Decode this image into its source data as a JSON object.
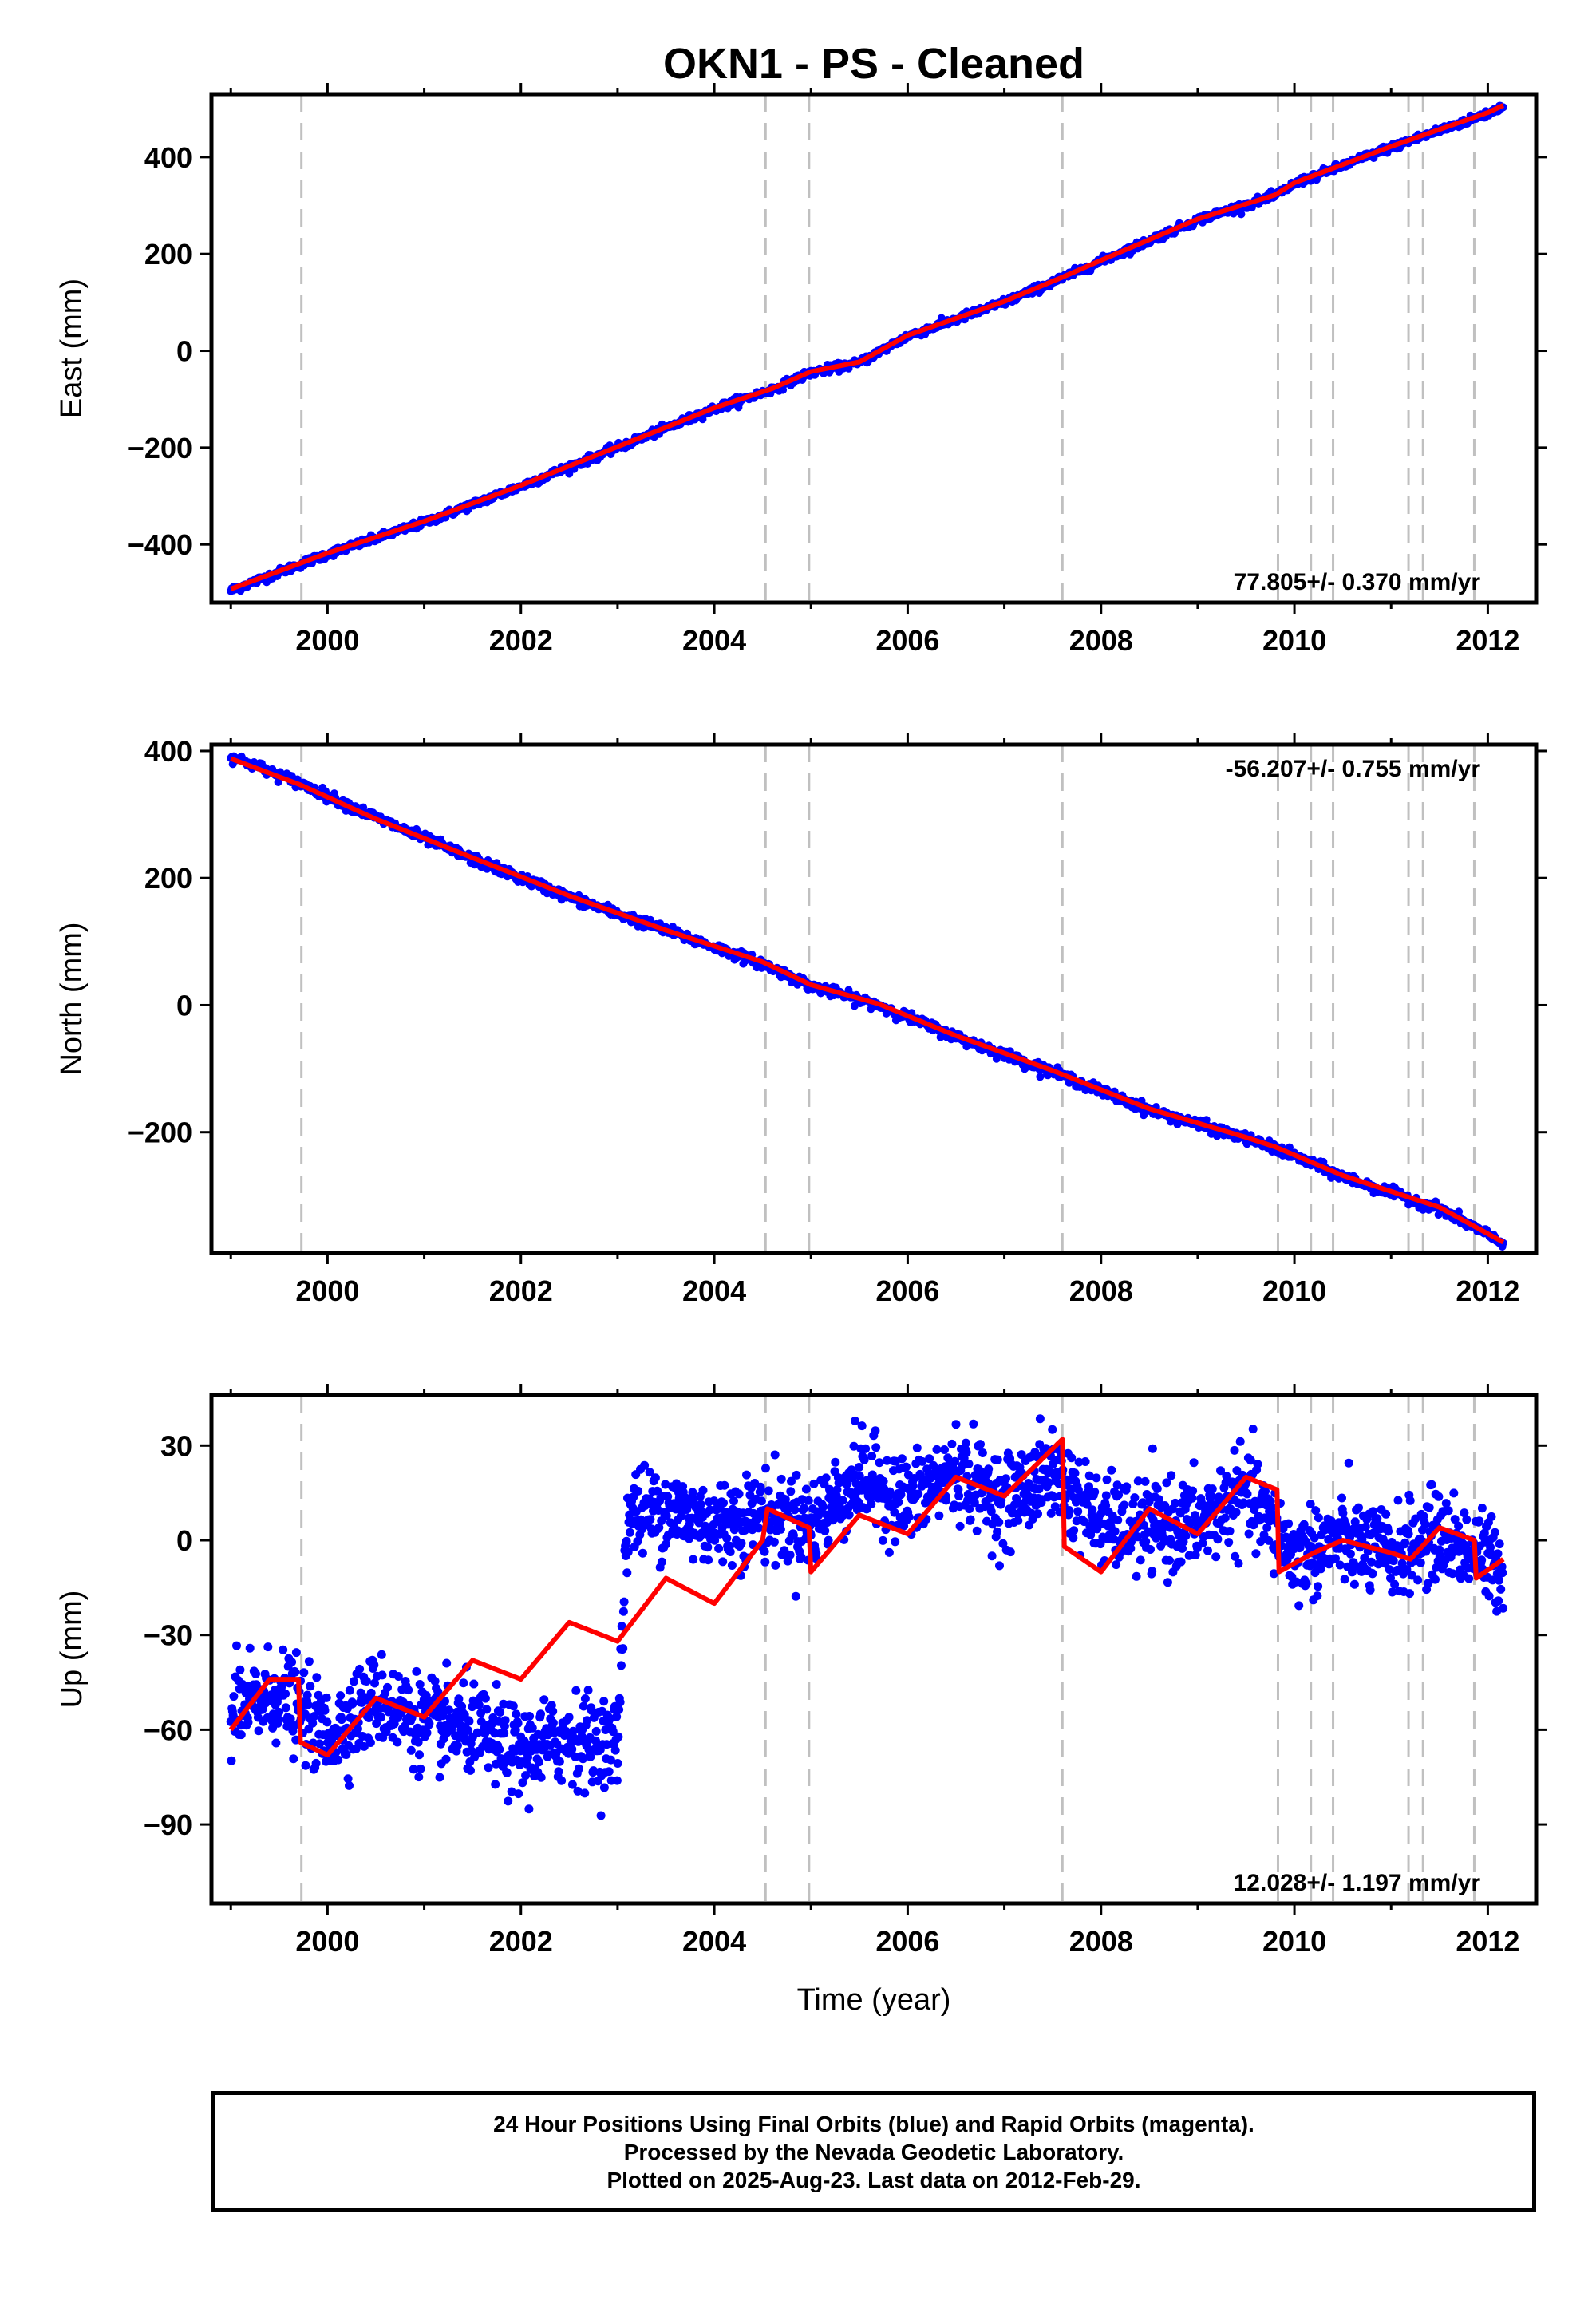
{
  "title": "OKN1  - PS - Cleaned",
  "xlabel": "Time (year)",
  "footer": {
    "line1": "24 Hour Positions Using Final Orbits (blue) and Rapid Orbits (magenta).",
    "line2": "Processed by the Nevada Geodetic Laboratory.",
    "line3": "Plotted on 2025-Aug-23. Last data on 2012-Feb-29."
  },
  "colors": {
    "data": "#0000ff",
    "model": "#ff0000",
    "breaks": "#c0c0c0",
    "axes": "#000000"
  },
  "chart_data": [
    {
      "type": "scatter",
      "panel": "east",
      "ylabel": "East (mm)",
      "rate_label": "77.805+/- 0.370 mm/yr",
      "xlim": [
        1998.8,
        2012.5
      ],
      "ylim": [
        -520,
        530
      ],
      "x_ticks": [
        2000,
        2002,
        2004,
        2006,
        2008,
        2010,
        2012
      ],
      "y_ticks": [
        -400,
        -200,
        0,
        200,
        400
      ],
      "series": [
        {
          "name": "data",
          "x": [
            1999.0,
            2000.0,
            2001.0,
            2002.0,
            2003.0,
            2004.0,
            2004.6,
            2005.0,
            2005.5,
            2006.0,
            2007.0,
            2007.6,
            2008.0,
            2009.0,
            2009.8,
            2010.0,
            2011.0,
            2012.0,
            2012.16
          ],
          "y": [
            -495,
            -420,
            -355,
            -280,
            -200,
            -120,
            -80,
            -45,
            -25,
            30,
            100,
            150,
            185,
            270,
            320,
            345,
            420,
            490,
            505
          ]
        },
        {
          "name": "model",
          "x": [
            1999.0,
            2000.0,
            2001.0,
            2002.0,
            2003.0,
            2004.0,
            2004.6,
            2005.0,
            2005.5,
            2006.0,
            2007.0,
            2007.6,
            2008.0,
            2009.0,
            2009.8,
            2010.0,
            2011.0,
            2012.0,
            2012.16
          ],
          "y": [
            -492,
            -418,
            -352,
            -278,
            -198,
            -118,
            -78,
            -43,
            -23,
            32,
            102,
            152,
            187,
            272,
            322,
            347,
            422,
            492,
            507
          ]
        }
      ]
    },
    {
      "type": "scatter",
      "panel": "north",
      "ylabel": "North (mm)",
      "rate_label": "-56.207+/- 0.755 mm/yr",
      "xlim": [
        1998.8,
        2012.5
      ],
      "ylim": [
        -390,
        410
      ],
      "x_ticks": [
        2000,
        2002,
        2004,
        2006,
        2008,
        2010,
        2012
      ],
      "y_ticks": [
        -200,
        0,
        200,
        400
      ],
      "series": [
        {
          "name": "data",
          "x": [
            1999.0,
            1999.7,
            2000.5,
            2001.5,
            2002.5,
            2003.5,
            2004.5,
            2005.0,
            2005.7,
            2006.5,
            2007.5,
            2008.5,
            2009.5,
            2009.8,
            2010.5,
            2011.5,
            2012.16
          ],
          "y": [
            392,
            350,
            295,
            230,
            170,
            118,
            65,
            30,
            0,
            -50,
            -105,
            -165,
            -210,
            -225,
            -270,
            -320,
            -375
          ]
        },
        {
          "name": "model",
          "x": [
            1999.0,
            1999.7,
            2000.5,
            2001.5,
            2002.5,
            2003.5,
            2004.5,
            2005.0,
            2005.7,
            2006.5,
            2007.5,
            2008.5,
            2009.5,
            2009.8,
            2010.5,
            2011.5,
            2012.16
          ],
          "y": [
            388,
            348,
            293,
            232,
            172,
            118,
            68,
            32,
            2,
            -48,
            -103,
            -163,
            -208,
            -223,
            -268,
            -318,
            -373
          ]
        }
      ]
    },
    {
      "type": "scatter",
      "panel": "up",
      "ylabel": "Up (mm)",
      "rate_label": "12.028+/- 1.197 mm/yr",
      "xlim": [
        1998.8,
        2012.5
      ],
      "ylim": [
        -115,
        46
      ],
      "x_ticks": [
        2000,
        2002,
        2004,
        2006,
        2008,
        2010,
        2012
      ],
      "y_ticks": [
        -90,
        -60,
        -30,
        0,
        30
      ],
      "series": [
        {
          "name": "data",
          "x": [
            1999.0,
            1999.5,
            2000.0,
            2000.5,
            2001.0,
            2001.5,
            2002.0,
            2002.5,
            2003.0,
            2003.1,
            2003.5,
            2004.0,
            2004.5,
            2005.0,
            2005.5,
            2006.0,
            2006.5,
            2007.0,
            2007.5,
            2008.0,
            2008.5,
            2009.0,
            2009.5,
            2010.0,
            2010.5,
            2011.0,
            2011.5,
            2012.0,
            2012.16
          ],
          "y": [
            -55,
            -48,
            -62,
            -50,
            -58,
            -60,
            -68,
            -62,
            -65,
            8,
            10,
            5,
            8,
            5,
            20,
            12,
            22,
            12,
            22,
            5,
            4,
            5,
            15,
            -5,
            0,
            -5,
            2,
            -6,
            -8
          ]
        },
        {
          "name": "model",
          "x": [
            1999.0,
            1999.4,
            1999.7,
            1999.72,
            2000.0,
            2000.5,
            2001.0,
            2001.5,
            2002.0,
            2002.5,
            2003.0,
            2003.5,
            2004.0,
            2004.5,
            2004.55,
            2004.98,
            2005.0,
            2005.5,
            2006.0,
            2006.5,
            2007.0,
            2007.6,
            2007.62,
            2008.0,
            2008.5,
            2009.0,
            2009.5,
            2009.82,
            2009.84,
            2010.2,
            2010.5,
            2011.0,
            2011.2,
            2011.5,
            2011.86,
            2011.88,
            2012.16
          ],
          "y": [
            -60,
            -44,
            -44,
            -64,
            -68,
            -50,
            -56,
            -38,
            -44,
            -26,
            -32,
            -12,
            -20,
            0,
            10,
            4,
            -10,
            8,
            2,
            20,
            14,
            32,
            -2,
            -10,
            10,
            2,
            20,
            16,
            -10,
            -4,
            0,
            -4,
            -6,
            4,
            0,
            -12,
            -6
          ]
        }
      ]
    }
  ],
  "break_years": [
    1999.73,
    2004.53,
    2004.98,
    2007.6,
    2009.83,
    2010.17,
    2010.4,
    2011.18,
    2011.33,
    2011.86
  ]
}
